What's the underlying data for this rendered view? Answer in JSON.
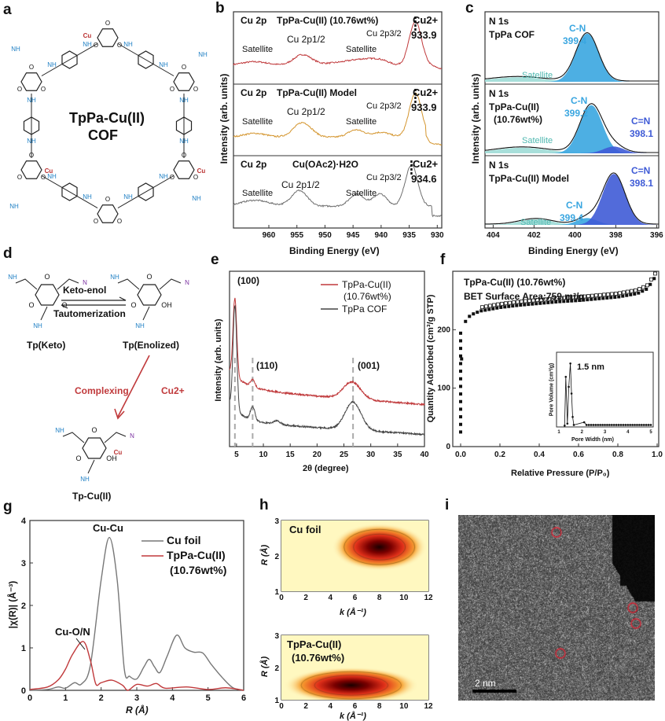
{
  "panel_labels": {
    "a": "a",
    "b": "b",
    "c": "c",
    "d": "d",
    "e": "e",
    "f": "f",
    "g": "g",
    "h": "h",
    "i": "i"
  },
  "atoms": {
    "O": "O",
    "NH": "NH",
    "N": "N",
    "Cu": "Cu",
    "OH": "OH"
  },
  "panel_a": {
    "title_line1": "TpPa-Cu(II)",
    "title_line2": "COF"
  },
  "panel_b": {
    "ylabel": "Intensity (arb. units)",
    "xlabel": "Binding Energy (eV)",
    "xticks": [
      "960",
      "955",
      "950",
      "945",
      "940",
      "935",
      "930"
    ],
    "panels": [
      {
        "element": "Cu 2p",
        "sample": "TpPa-Cu(II) (10.76wt%)",
        "state": "Cu2+",
        "peak_value": "933.9",
        "p12": "Cu 2p1/2",
        "p32": "Cu 2p3/2",
        "sat1": "Satellite",
        "sat2": "Satellite",
        "color": "#c0393b"
      },
      {
        "element": "Cu 2p",
        "sample": "TpPa-Cu(II) Model",
        "state": "Cu2+",
        "peak_value": "933.9",
        "p12": "Cu 2p1/2",
        "p32": "Cu 2p3/2",
        "sat1": "Satellite",
        "sat2": "Satellite",
        "color": "#d4952e"
      },
      {
        "element": "Cu 2p",
        "sample": "Cu(OAc2)·H2O",
        "state": "Cu2+",
        "peak_value": "934.6",
        "p12": "Cu 2p1/2",
        "p32": "Cu 2p3/2",
        "sat1": "Satellite",
        "sat2": "Satellite",
        "color": "#6e6e6e"
      }
    ]
  },
  "panel_c": {
    "ylabel": "Intensity (arb. units)",
    "xlabel": "Binding Energy (eV)",
    "xticks": [
      "404",
      "402",
      "400",
      "398",
      "396"
    ],
    "colors": {
      "cn": "#3aa6e0",
      "c_eq_n": "#3f5bd6",
      "satellite": "#9fdcd6"
    },
    "panels": [
      {
        "element": "N 1s",
        "sample": "TpPa COF",
        "sample2": "",
        "cn_label": "C-N",
        "cn_value": "399.4",
        "ceqn_label": "",
        "ceqn_value": "",
        "satellite": "Satellite"
      },
      {
        "element": "N 1s",
        "sample": "TpPa-Cu(II)",
        "sample2": "(10.76wt%)",
        "cn_label": "C-N",
        "cn_value": "399.2",
        "ceqn_label": "C=N",
        "ceqn_value": "398.1",
        "satellite": "Satellite"
      },
      {
        "element": "N 1s",
        "sample": "TpPa-Cu(II) Model",
        "sample2": "",
        "cn_label": "C-N",
        "cn_value": "399.4",
        "ceqn_label": "C=N",
        "ceqn_value": "398.1",
        "satellite": "Satellite"
      }
    ]
  },
  "panel_d": {
    "keto": "Tp(Keto)",
    "enol": "Tp(Enolized)",
    "cu": "Tp-Cu(II)",
    "arrow_top": "Keto-enol",
    "arrow_bottom": "Tautomerization",
    "complexing": "Complexing",
    "cu_ion": "Cu2+"
  },
  "panel_e": {
    "ylabel": "Intensity (arb. units)",
    "xlabel": "2θ (degree)",
    "xticks": [
      "5",
      "10",
      "15",
      "20",
      "25",
      "30",
      "35",
      "40"
    ],
    "peaks": [
      "(100)",
      "(110)",
      "(001)"
    ],
    "legend": [
      {
        "name": "TpPa-Cu(II)",
        "name2": "(10.76wt%)",
        "color": "#c0393b"
      },
      {
        "name": "TpPa COF",
        "name2": "",
        "color": "#444444"
      }
    ]
  },
  "panel_f": {
    "ylabel": "Quantity Adsorbed (cm³/g STP)",
    "xlabel": "Relative Pressure (P/P₀)",
    "xticks": [
      "0.0",
      "0.2",
      "0.4",
      "0.6",
      "0.8",
      "1.0"
    ],
    "yticks": [
      "0",
      "100",
      "200"
    ],
    "title1": "TpPa-Cu(II) (10.76wt%)",
    "title2": "BET Surface Area:759 m²/g",
    "inset": {
      "xlabel": "Pore Width (nm)",
      "ylabel": "Pore Volume (cm³/g)",
      "xticks": [
        "1",
        "2",
        "3",
        "4",
        "5"
      ],
      "annotation": "1.5 nm"
    }
  },
  "panel_g": {
    "ylabel": "|χ(R)| (Å⁻³)",
    "xlabel": "R (Å)",
    "xticks": [
      "0",
      "1",
      "2",
      "3",
      "4",
      "5",
      "6"
    ],
    "yticks": [
      "0",
      "1",
      "2",
      "3",
      "4"
    ],
    "annot_cucu": "Cu-Cu",
    "annot_cuon": "Cu-O/N",
    "legend": [
      {
        "name": "Cu foil",
        "name2": "",
        "color": "#777777"
      },
      {
        "name": "TpPa-Cu(II)",
        "name2": "(10.76wt%)",
        "color": "#c0393b"
      }
    ]
  },
  "panel_h": {
    "xlabel": "k (Å⁻¹)",
    "ylabel": "R (Å)",
    "xticks": [
      "0",
      "2",
      "4",
      "6",
      "8",
      "10",
      "12"
    ],
    "yticks": [
      "1",
      "2",
      "3"
    ],
    "top_label": "Cu foil",
    "bottom_label": "TpPa-Cu(II)",
    "bottom_label2": "(10.76wt%)"
  },
  "panel_i": {
    "scale_bar": "2 nm"
  },
  "chart_data": [
    {
      "panel": "b",
      "type": "line",
      "xlabel": "Binding Energy (eV)",
      "xlim": [
        966,
        929
      ],
      "series": [
        {
          "name": "TpPa-Cu(II) (10.76wt%)",
          "peaks_eV": [
            933.9,
            954.0,
            962.5,
            943.0
          ]
        },
        {
          "name": "TpPa-Cu(II) Model",
          "peaks_eV": [
            933.9,
            954.0,
            962.5,
            944.5,
            940.0
          ]
        },
        {
          "name": "Cu(OAc2)·H2O",
          "peaks_eV": [
            934.6,
            954.6,
            962.5,
            944.3,
            940.2
          ]
        }
      ]
    },
    {
      "panel": "c",
      "type": "area",
      "xlabel": "Binding Energy (eV)",
      "xlim": [
        404.4,
        396
      ],
      "components": [
        {
          "sample": "TpPa COF",
          "C-N": 399.4
        },
        {
          "sample": "TpPa-Cu(II) (10.76wt%)",
          "C-N": 399.2,
          "C=N": 398.1
        },
        {
          "sample": "TpPa-Cu(II) Model",
          "C-N": 399.4,
          "C=N": 398.1
        }
      ]
    },
    {
      "panel": "e",
      "type": "line",
      "xlabel": "2θ (degree)",
      "xlim": [
        3.7,
        40
      ],
      "peaks_2theta": [
        4.7,
        8.0,
        26.7
      ]
    },
    {
      "panel": "f",
      "type": "scatter",
      "xlabel": "Relative Pressure (P/P₀)",
      "ylabel": "Quantity Adsorbed (cm³/g STP)",
      "xlim": [
        0,
        1
      ],
      "ylim": [
        0,
        300
      ],
      "x": [
        0,
        0.005,
        0.01,
        0.02,
        0.05,
        0.1,
        0.2,
        0.3,
        0.4,
        0.5,
        0.6,
        0.7,
        0.8,
        0.9,
        0.95,
        0.99
      ],
      "y": [
        25,
        150,
        200,
        212,
        225,
        232,
        238,
        242,
        245,
        248,
        250,
        253,
        256,
        262,
        270,
        290
      ],
      "inset_pore_peak_nm": 1.5
    },
    {
      "panel": "g",
      "type": "line",
      "xlabel": "R (Å)",
      "ylabel": "|χ(R)| (Å⁻³)",
      "xlim": [
        0,
        6
      ],
      "ylim": [
        0,
        4
      ],
      "series": [
        {
          "name": "Cu foil",
          "x": [
            0,
            0.5,
            0.8,
            1.0,
            1.25,
            1.45,
            1.7,
            2.0,
            2.23,
            2.45,
            2.65,
            2.8,
            3.0,
            3.2,
            3.35,
            3.5,
            3.65,
            3.85,
            4.12,
            4.35,
            4.6,
            4.85,
            5.1,
            5.4,
            5.7,
            6.0
          ],
          "y": [
            0,
            0.02,
            0.08,
            0.05,
            0.18,
            0.15,
            0.6,
            2.6,
            3.6,
            2.6,
            0.5,
            0.33,
            0.27,
            0.55,
            0.73,
            0.55,
            0.42,
            0.8,
            1.3,
            1.0,
            0.9,
            0.88,
            0.6,
            0.3,
            0.06,
            0
          ]
        },
        {
          "name": "TpPa-Cu(II) (10.76wt%)",
          "x": [
            0,
            0.5,
            0.8,
            1.0,
            1.2,
            1.5,
            1.7,
            1.85,
            2.0,
            2.3,
            2.6,
            2.75,
            3.0,
            3.3,
            3.55,
            3.8,
            4.4,
            5.0,
            5.5,
            6.0
          ],
          "y": [
            0.02,
            0.08,
            0.25,
            0.5,
            0.85,
            1.15,
            0.7,
            0.15,
            0.18,
            0.24,
            0.12,
            0.0,
            0.14,
            0.1,
            0.16,
            0.05,
            0.08,
            0.02,
            0.06,
            0
          ]
        }
      ]
    },
    {
      "panel": "h",
      "type": "heatmap",
      "xlabel": "k (Å⁻¹)",
      "ylabel": "R (Å)",
      "xlim": [
        0,
        12
      ],
      "ylim": [
        1,
        3
      ],
      "maxima": [
        {
          "name": "Cu foil",
          "k": 8.0,
          "R": 2.25
        },
        {
          "name": "TpPa-Cu(II) (10.76wt%)",
          "k": 5.7,
          "R": 1.45
        }
      ]
    }
  ]
}
